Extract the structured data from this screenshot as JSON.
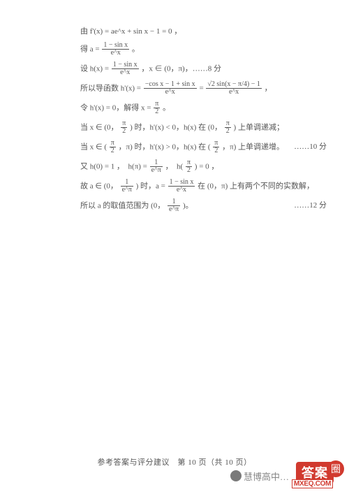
{
  "lines": {
    "l1": "由 f'(x) = ae^x + sin x − 1 = 0 ，",
    "l2_pre": "得 a =",
    "l2_num": "1 − sin x",
    "l2_den": "e^x",
    "l2_post": "。",
    "l3_pre": "设 h(x) =",
    "l3_num": "1 − sin x",
    "l3_den": "e^x",
    "l3_mid": "，x ∈ (0，π)，……8 分",
    "l4_pre": "所以导函数 h'(x) =",
    "l4a_num": "−cos x − 1 + sin x",
    "l4a_den": "e^x",
    "l4_eq": " = ",
    "l4b_num": "√2 sin(x − π/4) − 1",
    "l4b_den": "e^x",
    "l4_post": "，",
    "l5_pre": "令 h'(x) = 0，解得 x =",
    "l5_num": "π",
    "l5_den": "2",
    "l5_post": "。",
    "l6_pre": "当 x ∈ (0，",
    "l6f1_num": "π",
    "l6f1_den": "2",
    "l6_mid": ") 时，h'(x) < 0，h(x) 在 (0，",
    "l6f2_num": "π",
    "l6f2_den": "2",
    "l6_post": ") 上单调递减；",
    "l7_pre": "当 x ∈ (",
    "l7f1_num": "π",
    "l7f1_den": "2",
    "l7_mid": "，π) 时，h'(x) > 0，h(x) 在 (",
    "l7f2_num": "π",
    "l7f2_den": "2",
    "l7_post": "，π) 上单调递增。",
    "l7_score": "……10 分",
    "l8_pre": "又 h(0) = 1 ，　h(π) =",
    "l8f1_num": "1",
    "l8f1_den": "e^π",
    "l8_mid": "，　h(",
    "l8f2_num": "π",
    "l8f2_den": "2",
    "l8_post": ") = 0 ，",
    "l9_pre": "故 a ∈ (0，",
    "l9f1_num": "1",
    "l9f1_den": "e^π",
    "l9_mid": ") 时，a =",
    "l9f2_num": "1 − sin x",
    "l9f2_den": "e^x",
    "l9_post": " 在 (0，π) 上有两个不同的实数解，",
    "l10_pre": "所以 a 的取值范围为 (0，",
    "l10_num": "1",
    "l10_den": "e^π",
    "l10_post": ")。",
    "l10_score": "……12 分"
  },
  "footer": "参考答案与评分建议　第 10 页（共 10 页）",
  "wm_text": "慧博高中…",
  "badge_text": "答案",
  "badge_circle": "圈",
  "badge_sub": "MXEQ.COM"
}
